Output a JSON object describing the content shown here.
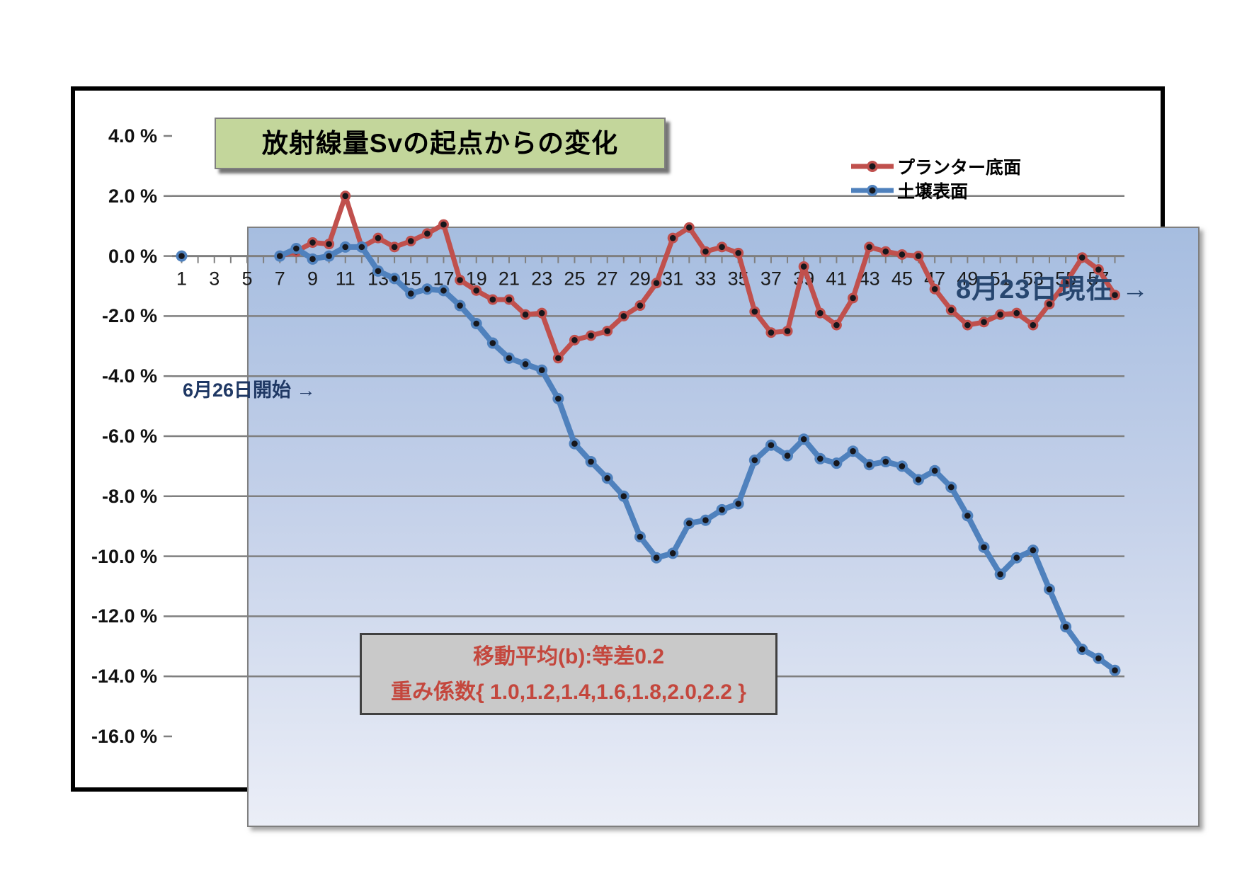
{
  "title": "放射線量Svの起点からの変化",
  "annotations": {
    "start": {
      "text": "6月26日開始 →",
      "color": "#1f3864"
    },
    "current": {
      "text": "8月23日現在 →",
      "color": "#27466f"
    }
  },
  "note_box": {
    "line1": "移動平均(b):等差0.2",
    "line2": "重み係数{ 1.0,1.2,1.4,1.6,1.8,2.0,2.2 }",
    "text_color": "#c4473d",
    "bg_color": "#c9c9c9"
  },
  "chart_data": {
    "type": "line",
    "title": "放射線量Svの起点からの変化",
    "grid": true,
    "legend_position": "top-right",
    "ylim": [
      -16,
      4
    ],
    "y_tick_values": [
      4,
      2,
      0,
      -2,
      -4,
      -6,
      -8,
      -10,
      -12,
      -14,
      -16
    ],
    "y_tick_labels": [
      "4.0 %",
      "2.0 %",
      "0.0 %",
      "-2.0 %",
      "-4.0 %",
      "-6.0 %",
      "-8.0 %",
      "-10.0 %",
      "-12.0 %",
      "-14.0 %",
      "-16.0 %"
    ],
    "x": [
      1,
      2,
      3,
      4,
      5,
      6,
      7,
      8,
      9,
      10,
      11,
      12,
      13,
      14,
      15,
      16,
      17,
      18,
      19,
      20,
      21,
      22,
      23,
      24,
      25,
      26,
      27,
      28,
      29,
      30,
      31,
      32,
      33,
      34,
      35,
      36,
      37,
      38,
      39,
      40,
      41,
      42,
      43,
      44,
      45,
      46,
      47,
      48,
      49,
      50,
      51,
      52,
      53,
      54,
      55,
      56,
      57,
      58
    ],
    "x_axis_labels": [
      1,
      3,
      5,
      7,
      9,
      11,
      13,
      15,
      17,
      19,
      21,
      23,
      25,
      27,
      29,
      31,
      33,
      35,
      37,
      39,
      41,
      43,
      45,
      47,
      49,
      51,
      53,
      55,
      57
    ],
    "background_gradient": [
      "#a6bde0",
      "#ebeef7"
    ],
    "gridline_color": "#7f7f7f",
    "series": [
      {
        "name": "プランター底面",
        "color": "#c0504d",
        "marker_core_color": "#17171c",
        "line_width": 7,
        "marker_radius": 7.5,
        "values": [
          null,
          null,
          null,
          null,
          null,
          null,
          0.0,
          0.15,
          0.45,
          0.4,
          2.0,
          0.3,
          0.6,
          0.3,
          0.5,
          0.75,
          1.05,
          -0.8,
          -1.15,
          -1.45,
          -1.45,
          -1.95,
          -1.9,
          -3.4,
          -2.8,
          -2.65,
          -2.5,
          -2.0,
          -1.65,
          -0.9,
          0.6,
          0.95,
          0.15,
          0.3,
          0.1,
          -1.85,
          -2.55,
          -2.5,
          -0.35,
          -1.9,
          -2.3,
          -1.4,
          0.3,
          0.15,
          0.05,
          0.0,
          -1.1,
          -1.8,
          -2.3,
          -2.2,
          -1.95,
          -1.9,
          -2.3,
          -1.6,
          -0.9,
          -0.05,
          -0.45,
          -1.3
        ]
      },
      {
        "name": "土壌表面",
        "color": "#4f81bd",
        "marker_core_color": "#17171c",
        "line_width": 8,
        "marker_radius": 8,
        "values": [
          0.0,
          null,
          null,
          null,
          null,
          null,
          0.0,
          0.25,
          -0.1,
          0.0,
          0.3,
          0.3,
          -0.5,
          -0.75,
          -1.25,
          -1.1,
          -1.15,
          -1.65,
          -2.25,
          -2.9,
          -3.4,
          -3.6,
          -3.8,
          -4.75,
          -6.25,
          -6.85,
          -7.4,
          -8.0,
          -9.35,
          -10.05,
          -9.9,
          -8.9,
          -8.8,
          -8.45,
          -8.25,
          -6.8,
          -6.3,
          -6.65,
          -6.1,
          -6.75,
          -6.9,
          -6.5,
          -6.95,
          -6.85,
          -7.0,
          -7.45,
          -7.15,
          -7.7,
          -8.65,
          -9.7,
          -10.6,
          -10.05,
          -9.8,
          -11.1,
          -12.35,
          -13.1,
          -13.4,
          -13.8
        ]
      }
    ]
  }
}
